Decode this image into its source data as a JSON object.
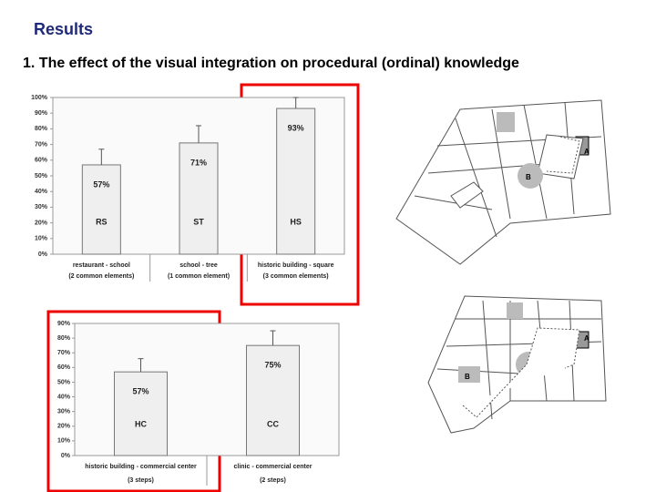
{
  "title": "Results",
  "subtitle": "1. The effect of the visual integration on procedural (ordinal) knowledge",
  "chart_data": [
    {
      "type": "bar",
      "categories": [
        "restaurant - school",
        "school - tree",
        "historic building - square"
      ],
      "category_notes": [
        "(2 common elements)",
        "(1 common element)",
        "(3 common elements)"
      ],
      "values": [
        57,
        71,
        93
      ],
      "value_labels": [
        "57%",
        "71%",
        "93%"
      ],
      "errors": [
        10,
        11,
        7
      ],
      "bar_labels": [
        "RS",
        "ST",
        "HS"
      ],
      "ylim": [
        0,
        100
      ],
      "yticks": [
        {
          "value": 0,
          "label": "0%"
        },
        {
          "value": 10,
          "label": "10%"
        },
        {
          "value": 20,
          "label": "20%"
        },
        {
          "value": 30,
          "label": "30%"
        },
        {
          "value": 40,
          "label": "40%"
        },
        {
          "value": 50,
          "label": "50%"
        },
        {
          "value": 60,
          "label": "60%"
        },
        {
          "value": 70,
          "label": "70%"
        },
        {
          "value": 80,
          "label": "80%"
        },
        {
          "value": 90,
          "label": "90%"
        },
        {
          "value": 100,
          "label": "100%"
        }
      ],
      "color": "#efefef",
      "grid": false
    },
    {
      "type": "bar",
      "categories": [
        "historic building - commercial center",
        "clinic - commercial center"
      ],
      "category_notes": [
        "(3 steps)",
        "(2 steps)"
      ],
      "values": [
        57,
        75
      ],
      "value_labels": [
        "57%",
        "75%"
      ],
      "errors": [
        9,
        10
      ],
      "bar_labels": [
        "HC",
        "CC"
      ],
      "ylim": [
        0,
        90
      ],
      "yticks": [
        {
          "value": 0,
          "label": "0%"
        },
        {
          "value": 10,
          "label": "10%"
        },
        {
          "value": 20,
          "label": "20%"
        },
        {
          "value": 30,
          "label": "30%"
        },
        {
          "value": 40,
          "label": "40%"
        },
        {
          "value": 50,
          "label": "50%"
        },
        {
          "value": 60,
          "label": "60%"
        },
        {
          "value": 70,
          "label": "70%"
        },
        {
          "value": 80,
          "label": "80%"
        },
        {
          "value": 90,
          "label": "90%"
        }
      ],
      "color": "#efefef",
      "grid": false
    }
  ],
  "map_labels": [
    [
      "A",
      "B"
    ],
    [
      "A",
      "B"
    ]
  ]
}
